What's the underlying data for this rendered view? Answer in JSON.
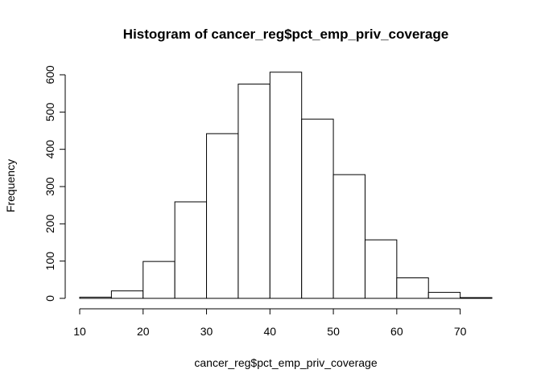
{
  "chart_data": {
    "type": "bar",
    "title": "Histogram of cancer_reg$pct_emp_priv_coverage",
    "xlabel": "cancer_reg$pct_emp_priv_coverage",
    "ylabel": "Frequency",
    "bin_edges": [
      10,
      15,
      20,
      25,
      30,
      35,
      40,
      45,
      50,
      55,
      60,
      65,
      70,
      75
    ],
    "values": [
      3,
      20,
      99,
      259,
      442,
      575,
      607,
      481,
      332,
      157,
      55,
      16,
      2
    ],
    "xlim": [
      10,
      75
    ],
    "ylim": [
      0,
      600
    ],
    "x_ticks": [
      "10",
      "20",
      "30",
      "40",
      "50",
      "60",
      "70"
    ],
    "y_ticks": [
      "0",
      "100",
      "200",
      "300",
      "400",
      "500",
      "600"
    ],
    "grid": false,
    "legend": "none"
  }
}
